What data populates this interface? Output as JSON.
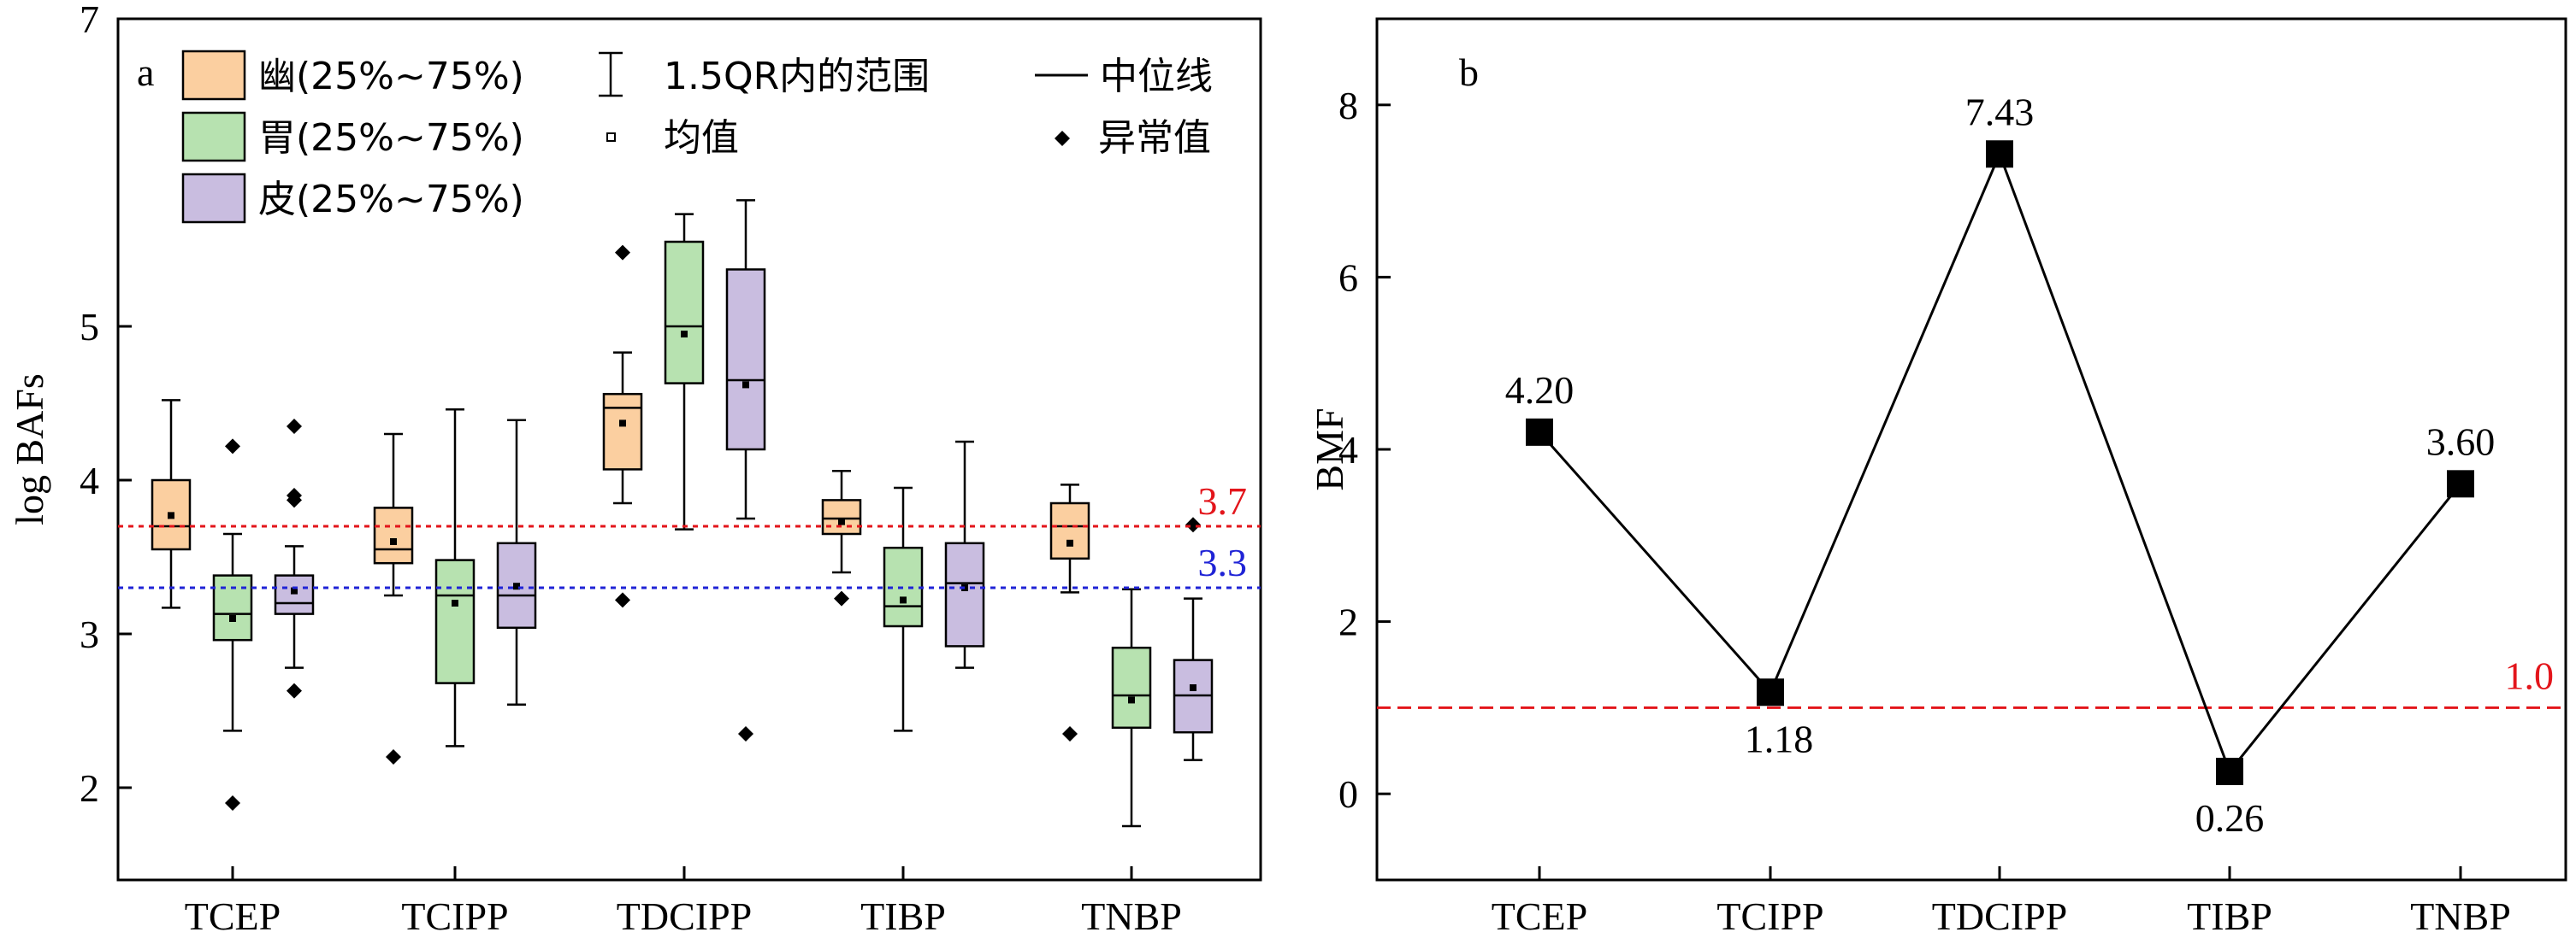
{
  "chart_data": [
    {
      "panel_label": "a",
      "type": "box",
      "ylabel": "log BAFs",
      "ylim": [
        1.4,
        7.0
      ],
      "yticks": [
        2,
        3,
        4,
        5,
        7
      ],
      "categories": [
        "TCEP",
        "TCIPP",
        "TDCIPP",
        "TIBP",
        "TNBP"
      ],
      "series": [
        {
          "name": "幽(25%~75%)",
          "color": "#fbcfa0",
          "boxes": [
            {
              "whisker_low": 3.17,
              "q1": 3.55,
              "median": 3.7,
              "q3": 4.0,
              "whisker_high": 4.52,
              "mean": 3.77,
              "outliers": []
            },
            {
              "whisker_low": 3.25,
              "q1": 3.46,
              "median": 3.55,
              "q3": 3.82,
              "whisker_high": 4.3,
              "mean": 3.6,
              "outliers": [
                2.2
              ]
            },
            {
              "whisker_low": 3.85,
              "q1": 4.07,
              "median": 4.47,
              "q3": 4.56,
              "whisker_high": 4.83,
              "mean": 4.37,
              "outliers": [
                5.48,
                3.22
              ]
            },
            {
              "whisker_low": 3.4,
              "q1": 3.65,
              "median": 3.75,
              "q3": 3.87,
              "whisker_high": 4.06,
              "mean": 3.73,
              "outliers": [
                3.23
              ]
            },
            {
              "whisker_low": 3.27,
              "q1": 3.49,
              "median": 3.7,
              "q3": 3.85,
              "whisker_high": 3.97,
              "mean": 3.59,
              "outliers": [
                2.35
              ]
            }
          ]
        },
        {
          "name": "胃(25%~75%)",
          "color": "#b7e2b0",
          "boxes": [
            {
              "whisker_low": 2.37,
              "q1": 2.96,
              "median": 3.13,
              "q3": 3.38,
              "whisker_high": 3.65,
              "mean": 3.1,
              "outliers": [
                1.9,
                4.22
              ]
            },
            {
              "whisker_low": 2.27,
              "q1": 2.68,
              "median": 3.25,
              "q3": 3.48,
              "whisker_high": 4.46,
              "mean": 3.2,
              "outliers": []
            },
            {
              "whisker_low": 3.68,
              "q1": 4.63,
              "median": 5.0,
              "q3": 5.55,
              "whisker_high": 5.73,
              "mean": 4.95,
              "outliers": []
            },
            {
              "whisker_low": 2.37,
              "q1": 3.05,
              "median": 3.18,
              "q3": 3.56,
              "whisker_high": 3.95,
              "mean": 3.22,
              "outliers": []
            },
            {
              "whisker_low": 1.75,
              "q1": 2.39,
              "median": 2.6,
              "q3": 2.91,
              "whisker_high": 3.29,
              "mean": 2.57,
              "outliers": []
            }
          ]
        },
        {
          "name": "皮(25%~75%)",
          "color": "#c9bde0",
          "boxes": [
            {
              "whisker_low": 2.78,
              "q1": 3.13,
              "median": 3.2,
              "q3": 3.38,
              "whisker_high": 3.57,
              "mean": 3.28,
              "outliers": [
                2.63,
                3.87,
                3.9,
                4.35
              ]
            },
            {
              "whisker_low": 2.54,
              "q1": 3.04,
              "median": 3.25,
              "q3": 3.59,
              "whisker_high": 4.39,
              "mean": 3.31,
              "outliers": []
            },
            {
              "whisker_low": 3.75,
              "q1": 4.2,
              "median": 4.65,
              "q3": 5.37,
              "whisker_high": 5.82,
              "mean": 4.62,
              "outliers": [
                2.35
              ]
            },
            {
              "whisker_low": 2.78,
              "q1": 2.92,
              "median": 3.33,
              "q3": 3.59,
              "whisker_high": 4.25,
              "mean": 3.3,
              "outliers": []
            },
            {
              "whisker_low": 2.18,
              "q1": 2.36,
              "median": 2.6,
              "q3": 2.83,
              "whisker_high": 3.23,
              "mean": 2.65,
              "outliers": [
                3.71
              ]
            }
          ]
        }
      ],
      "reference_lines": [
        {
          "value": 3.7,
          "label": "3.7",
          "color": "#e3151b"
        },
        {
          "value": 3.3,
          "label": "3.3",
          "color": "#1f23d6"
        }
      ],
      "legend": {
        "whisker_label": "1.5QR内的范围",
        "median_label": "中位线",
        "mean_label": "均值",
        "outlier_label": "异常值"
      }
    },
    {
      "panel_label": "b",
      "type": "line",
      "ylabel": "BMF",
      "ylim": [
        -1,
        9
      ],
      "yticks": [
        0,
        2,
        4,
        6,
        8
      ],
      "categories": [
        "TCEP",
        "TCIPP",
        "TDCIPP",
        "TIBP",
        "TNBP"
      ],
      "values": [
        4.2,
        1.18,
        7.43,
        0.26,
        3.6
      ],
      "value_labels": [
        "4.20",
        "1.18",
        "7.43",
        "0.26",
        "3.60"
      ],
      "reference_line": {
        "value": 1.0,
        "label": "1.0",
        "color": "#e3151b"
      }
    }
  ]
}
